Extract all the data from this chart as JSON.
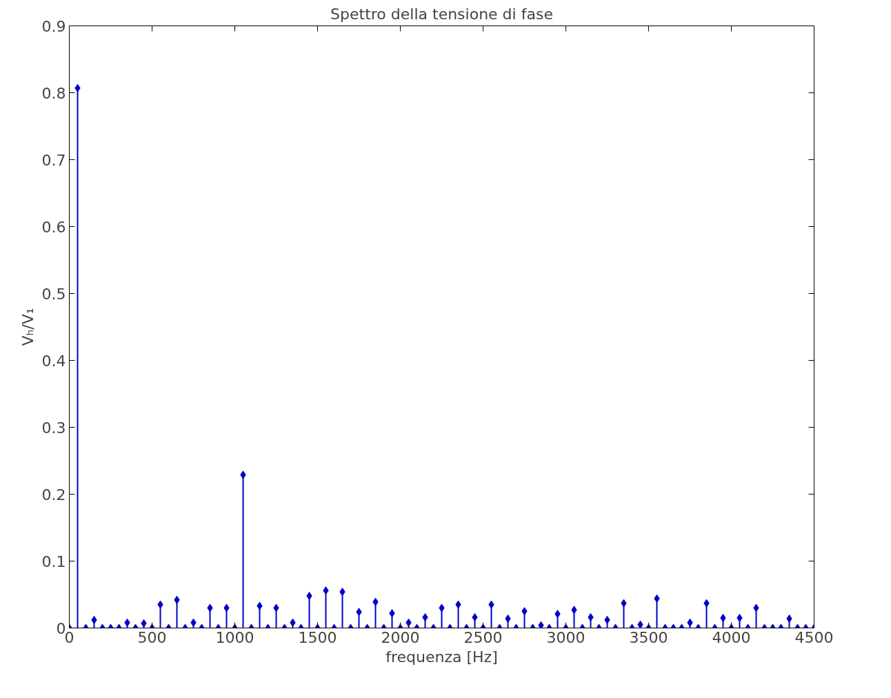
{
  "chart_data": {
    "type": "lollipop",
    "title": "Spettro della tensione di fase",
    "xlabel": "frequenza [Hz]",
    "ylabel": "Vₕ/V₁",
    "x": [
      0,
      50,
      100,
      150,
      200,
      250,
      300,
      350,
      400,
      450,
      500,
      550,
      600,
      650,
      700,
      750,
      800,
      850,
      900,
      950,
      1000,
      1050,
      1100,
      1150,
      1200,
      1250,
      1300,
      1350,
      1400,
      1450,
      1500,
      1550,
      1600,
      1650,
      1700,
      1750,
      1800,
      1850,
      1900,
      1950,
      2000,
      2050,
      2100,
      2150,
      2200,
      2250,
      2300,
      2350,
      2400,
      2450,
      2500,
      2550,
      2600,
      2650,
      2700,
      2750,
      2800,
      2850,
      2900,
      2950,
      3000,
      3050,
      3100,
      3150,
      3200,
      3250,
      3300,
      3350,
      3400,
      3450,
      3500,
      3550,
      3600,
      3650,
      3700,
      3750,
      3800,
      3850,
      3900,
      3950,
      4000,
      4050,
      4100,
      4150,
      4200,
      4250,
      4300,
      4350,
      4400,
      4450,
      4500
    ],
    "series": [
      {
        "color": "#0000c8",
        "values": [
          0,
          0.807,
          0,
          0.012,
          0,
          0,
          0,
          0.008,
          0,
          0.007,
          0,
          0.035,
          0,
          0.042,
          0,
          0.008,
          0,
          0.03,
          0,
          0.03,
          0,
          0.229,
          0,
          0.033,
          0,
          0.03,
          0,
          0.008,
          0,
          0.048,
          0,
          0.056,
          0,
          0.054,
          0,
          0.024,
          0,
          0.039,
          0,
          0.022,
          0,
          0.008,
          0,
          0.016,
          0,
          0.03,
          0,
          0.035,
          0,
          0.016,
          0,
          0.035,
          0,
          0.014,
          0,
          0.025,
          0,
          0.004,
          0,
          0.021,
          0,
          0.027,
          0,
          0.016,
          0,
          0.012,
          0,
          0.037,
          0,
          0.005,
          0,
          0.044,
          0,
          0,
          0,
          0.008,
          0,
          0.037,
          0,
          0.015,
          0,
          0.015,
          0,
          0.03,
          0,
          0,
          0,
          0.014,
          0,
          0,
          0
        ]
      }
    ],
    "xlim": [
      0,
      4500
    ],
    "xticks": [
      0,
      500,
      1000,
      1500,
      2000,
      2500,
      3000,
      3500,
      4000,
      4500
    ],
    "ylim": [
      0,
      0.9
    ],
    "yticks": [
      0,
      0.1,
      0.2,
      0.3,
      0.4,
      0.5,
      0.6,
      0.7,
      0.8,
      0.9
    ],
    "grid": false,
    "marker": "diamond"
  }
}
